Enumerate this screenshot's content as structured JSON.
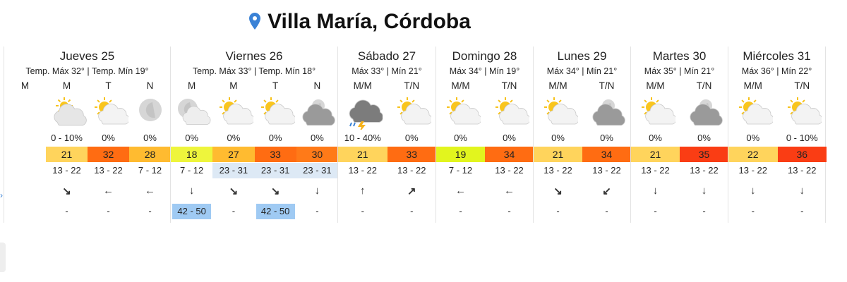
{
  "header": {
    "title": "Villa María, Córdoba"
  },
  "days": [
    {
      "name": "Jueves 25",
      "summary": "Temp. Máx 32° | Temp. Mín 19°",
      "periods": [
        {
          "label": "M"
        },
        {
          "label": "M",
          "precip": "0 - 10%",
          "temp": 21,
          "temp_color": "#ffd45c",
          "wind": "13 - 22",
          "direction": "↘",
          "gust": "-"
        },
        {
          "label": "T",
          "precip": "0%",
          "temp": 32,
          "temp_color": "#ff6c12",
          "wind": "13 - 22",
          "direction": "←",
          "gust": "-"
        },
        {
          "label": "N",
          "precip": "0%",
          "temp": 28,
          "temp_color": "#ffbb30",
          "wind": "7 - 12",
          "direction": "←",
          "gust": "-"
        }
      ]
    },
    {
      "name": "Viernes 26",
      "summary": "Temp. Máx 33° | Temp. Mín 18°",
      "periods": [
        {
          "label": "M",
          "precip": "0%",
          "temp": 18,
          "temp_color": "#eef53c",
          "wind": "7 - 12",
          "direction": "↓",
          "gust": "42 - 50",
          "gust_color": "#9fcaf3"
        },
        {
          "label": "M",
          "precip": "0%",
          "temp": 27,
          "temp_color": "#ffbb30",
          "wind": "23 - 31",
          "wind_color": "#dde9f5",
          "direction": "↘",
          "gust": "-"
        },
        {
          "label": "T",
          "precip": "0%",
          "temp": 33,
          "temp_color": "#ff6c12",
          "wind": "23 - 31",
          "wind_color": "#dde9f5",
          "direction": "↘",
          "gust": "42 - 50",
          "gust_color": "#9fcaf3"
        },
        {
          "label": "N",
          "precip": "0%",
          "temp": 30,
          "temp_color": "#ff7a18",
          "wind": "23 - 31",
          "wind_color": "#dde9f5",
          "direction": "↓",
          "gust": "-"
        }
      ]
    },
    {
      "name": "Sábado 27",
      "summary": "Máx 33° | Mín 21°",
      "periods": [
        {
          "label": "M/M",
          "precip": "10 - 40%",
          "temp": 21,
          "temp_color": "#ffd45c",
          "wind": "13 - 22",
          "direction": "↑",
          "gust": "-"
        },
        {
          "label": "T/N",
          "precip": "0%",
          "temp": 33,
          "temp_color": "#ff6c12",
          "wind": "13 - 22",
          "direction": "↗",
          "gust": "-"
        }
      ]
    },
    {
      "name": "Domingo 28",
      "summary": "Máx 34° | Mín 19°",
      "periods": [
        {
          "label": "M/M",
          "precip": "0%",
          "temp": 19,
          "temp_color": "#e2f51e",
          "wind": "7 - 12",
          "direction": "←",
          "gust": "-"
        },
        {
          "label": "T/N",
          "precip": "0%",
          "temp": 34,
          "temp_color": "#ff6c12",
          "wind": "13 - 22",
          "direction": "←",
          "gust": "-"
        }
      ]
    },
    {
      "name": "Lunes 29",
      "summary": "Máx 34° | Mín 21°",
      "periods": [
        {
          "label": "M/M",
          "precip": "0%",
          "temp": 21,
          "temp_color": "#ffd45c",
          "wind": "13 - 22",
          "direction": "↘",
          "gust": "-"
        },
        {
          "label": "T/N",
          "precip": "0%",
          "temp": 34,
          "temp_color": "#ff6c12",
          "wind": "13 - 22",
          "direction": "↙",
          "gust": "-"
        }
      ]
    },
    {
      "name": "Martes 30",
      "summary": "Máx 35° | Mín 21°",
      "periods": [
        {
          "label": "M/M",
          "precip": "0%",
          "temp": 21,
          "temp_color": "#ffd45c",
          "wind": "13 - 22",
          "direction": "↓",
          "gust": "-"
        },
        {
          "label": "T/N",
          "precip": "0%",
          "temp": 35,
          "temp_color": "#fa3d14",
          "wind": "13 - 22",
          "direction": "↓",
          "gust": "-"
        }
      ]
    },
    {
      "name": "Miércoles 31",
      "summary": "Máx 36° | Mín 22°",
      "periods": [
        {
          "label": "M/M",
          "precip": "0%",
          "temp": 22,
          "temp_color": "#ffd45c",
          "wind": "13 - 22",
          "direction": "↓",
          "gust": "-"
        },
        {
          "label": "T/N",
          "precip": "0 - 10%",
          "temp": 36,
          "temp_color": "#fa3d14",
          "wind": "13 - 22",
          "direction": "↓",
          "gust": "-"
        }
      ]
    }
  ]
}
